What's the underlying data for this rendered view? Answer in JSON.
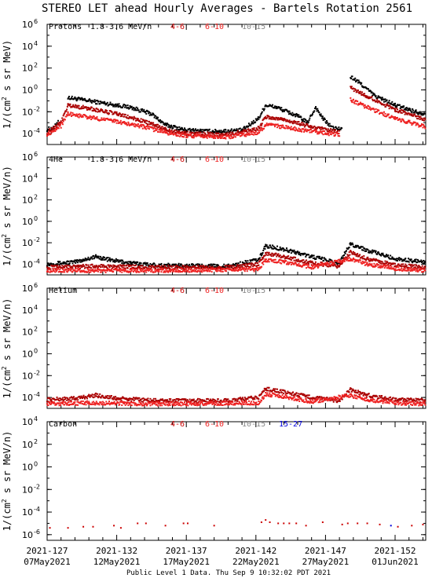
{
  "title": "STEREO LET ahead Hourly Averages - Bartels Rotation 2561",
  "footer": "Public Level 1 Data. Thu Sep  9 10:32:02 PDT 2021",
  "x_ticks": [
    {
      "day": 127,
      "doy": "2021-127",
      "date": "07May2021"
    },
    {
      "day": 132,
      "doy": "2021-132",
      "date": "12May2021"
    },
    {
      "day": 137,
      "doy": "2021-137",
      "date": "17May2021"
    },
    {
      "day": 142,
      "doy": "2021-142",
      "date": "22May2021"
    },
    {
      "day": 147,
      "doy": "2021-147",
      "date": "27May2021"
    },
    {
      "day": 152,
      "doy": "2021-152",
      "date": "01Jun2021"
    }
  ],
  "chart_data": [
    {
      "type": "scatter",
      "panel": "protons",
      "species": "Protons",
      "energy": "1.8-3.6 MeV/n",
      "ylabel": [
        "1/(cm",
        "2",
        " s sr MeV)"
      ],
      "y_exponents": [
        "6",
        "4",
        "2",
        "0",
        "-2",
        "-4"
      ],
      "ylim_log10": [
        -5,
        6
      ],
      "xlim_day": [
        127,
        154.2
      ],
      "legend": [
        {
          "label": "4-6",
          "color": "#cc0000"
        },
        {
          "label": "6-10",
          "color": "#ee2222"
        },
        {
          "label": "10-15",
          "color": "#888888"
        }
      ],
      "series": [
        {
          "name": "1.8-3.6 MeV/n",
          "color": "#000000",
          "points": [
            [
              127,
              -3.6
            ],
            [
              127.5,
              -3.5
            ],
            [
              127.8,
              -2.8
            ],
            [
              128.5,
              -0.7
            ],
            [
              129.5,
              -0.9
            ],
            [
              131,
              -1.2
            ],
            [
              133,
              -1.6
            ],
            [
              134.5,
              -2.2
            ],
            [
              135.5,
              -3.2
            ],
            [
              137,
              -3.7
            ],
            [
              139,
              -3.8
            ],
            [
              141,
              -3.7
            ],
            [
              142.2,
              -2.6
            ],
            [
              142.7,
              -1.4
            ],
            [
              143.5,
              -1.6
            ],
            [
              145,
              -2.4
            ],
            [
              145.7,
              -3.0
            ],
            [
              146.3,
              -1.6
            ],
            [
              146.8,
              -2.6
            ],
            [
              147.5,
              -3.5
            ],
            [
              148.2,
              -3.6
            ],
            [
              148.8,
              1.2
            ],
            [
              149.5,
              0.6
            ],
            [
              150.5,
              -0.5
            ],
            [
              152,
              -1.4
            ],
            [
              153.5,
              -2.0
            ],
            [
              154.2,
              -2.2
            ]
          ]
        },
        {
          "name": "4-6",
          "color": "#aa0000",
          "points": [
            [
              127,
              -3.9
            ],
            [
              128,
              -3.0
            ],
            [
              128.5,
              -1.4
            ],
            [
              130,
              -1.7
            ],
            [
              132,
              -2.2
            ],
            [
              134,
              -2.9
            ],
            [
              135.5,
              -3.6
            ],
            [
              137,
              -4.0
            ],
            [
              140,
              -4.1
            ],
            [
              142.2,
              -3.5
            ],
            [
              142.7,
              -2.5
            ],
            [
              144,
              -2.7
            ],
            [
              146,
              -3.4
            ],
            [
              148,
              -3.9
            ],
            [
              148.8,
              0.2
            ],
            [
              150,
              -0.6
            ],
            [
              152,
              -1.8
            ],
            [
              154.2,
              -2.7
            ]
          ]
        },
        {
          "name": "6-10",
          "color": "#ee2222",
          "points": [
            [
              127,
              -4.1
            ],
            [
              128,
              -3.3
            ],
            [
              128.5,
              -2.2
            ],
            [
              130,
              -2.5
            ],
            [
              132,
              -2.9
            ],
            [
              134,
              -3.4
            ],
            [
              135.5,
              -3.9
            ],
            [
              137,
              -4.2
            ],
            [
              140,
              -4.3
            ],
            [
              142.2,
              -3.9
            ],
            [
              142.7,
              -3.2
            ],
            [
              144,
              -3.4
            ],
            [
              146,
              -3.8
            ],
            [
              148,
              -4.1
            ],
            [
              148.8,
              -0.9
            ],
            [
              150,
              -1.6
            ],
            [
              152,
              -2.6
            ],
            [
              154.2,
              -3.4
            ]
          ]
        }
      ]
    },
    {
      "type": "scatter",
      "panel": "4he",
      "species": "4He",
      "energy": "1.8-3.6 MeV/n",
      "ylabel": [
        "1/(cm",
        "2",
        " s sr MeV/n)"
      ],
      "y_exponents": [
        "6",
        "4",
        "2",
        "0",
        "-2",
        "-4"
      ],
      "ylim_log10": [
        -5,
        6
      ],
      "xlim_day": [
        127,
        154.2
      ],
      "legend": [
        {
          "label": "4-6",
          "color": "#cc0000"
        },
        {
          "label": "6-10",
          "color": "#ee2222"
        },
        {
          "label": "10-15",
          "color": "#888888"
        }
      ],
      "series": [
        {
          "name": "1.8-3.6 MeV/n",
          "color": "#000000",
          "points": [
            [
              127,
              -4.0
            ],
            [
              129,
              -3.8
            ],
            [
              130.5,
              -3.3
            ],
            [
              131.5,
              -3.6
            ],
            [
              133,
              -3.9
            ],
            [
              135,
              -4.1
            ],
            [
              140,
              -4.2
            ],
            [
              142.2,
              -3.6
            ],
            [
              142.7,
              -2.3
            ],
            [
              144,
              -2.6
            ],
            [
              146,
              -3.3
            ],
            [
              148,
              -3.9
            ],
            [
              148.8,
              -2.1
            ],
            [
              150,
              -2.7
            ],
            [
              152,
              -3.5
            ],
            [
              154.2,
              -3.8
            ]
          ]
        },
        {
          "name": "4-6",
          "color": "#aa0000",
          "points": [
            [
              127,
              -4.3
            ],
            [
              130,
              -4.2
            ],
            [
              135,
              -4.3
            ],
            [
              140,
              -4.3
            ],
            [
              142.2,
              -4.0
            ],
            [
              142.7,
              -3.0
            ],
            [
              144,
              -3.3
            ],
            [
              146,
              -3.9
            ],
            [
              148,
              -4.2
            ],
            [
              148.8,
              -2.9
            ],
            [
              150,
              -3.5
            ],
            [
              152,
              -4.1
            ],
            [
              154.2,
              -4.3
            ]
          ]
        },
        {
          "name": "6-10",
          "color": "#ee2222",
          "points": [
            [
              127,
              -4.6
            ],
            [
              135,
              -4.6
            ],
            [
              142.2,
              -4.5
            ],
            [
              142.7,
              -3.6
            ],
            [
              144,
              -3.8
            ],
            [
              146,
              -4.3
            ],
            [
              148.8,
              -3.5
            ],
            [
              150,
              -4.0
            ],
            [
              152,
              -4.4
            ],
            [
              154.2,
              -4.6
            ]
          ]
        }
      ]
    },
    {
      "type": "scatter",
      "panel": "helium",
      "species": "Helium",
      "energy": "",
      "ylabel": [
        "1/(cm",
        "2",
        " s sr MeV/n)"
      ],
      "y_exponents": [
        "6",
        "4",
        "2",
        "0",
        "-2",
        "-4"
      ],
      "ylim_log10": [
        -5,
        6
      ],
      "xlim_day": [
        127,
        154.2
      ],
      "legend": [
        {
          "label": "4-6",
          "color": "#cc0000"
        },
        {
          "label": "6-10",
          "color": "#ee2222"
        },
        {
          "label": "10-15",
          "color": "#888888"
        }
      ],
      "series": [
        {
          "name": "4-6",
          "color": "#aa0000",
          "points": [
            [
              127,
              -4.2
            ],
            [
              129,
              -4.1
            ],
            [
              130.5,
              -3.8
            ],
            [
              132,
              -4.1
            ],
            [
              135,
              -4.3
            ],
            [
              140,
              -4.3
            ],
            [
              142.2,
              -4.0
            ],
            [
              142.7,
              -3.2
            ],
            [
              144,
              -3.5
            ],
            [
              146,
              -4.0
            ],
            [
              148,
              -4.3
            ],
            [
              148.8,
              -3.3
            ],
            [
              150,
              -3.8
            ],
            [
              152,
              -4.2
            ],
            [
              154.2,
              -4.3
            ]
          ]
        },
        {
          "name": "6-10",
          "color": "#ee2222",
          "points": [
            [
              127,
              -4.6
            ],
            [
              130,
              -4.5
            ],
            [
              135,
              -4.6
            ],
            [
              142.2,
              -4.5
            ],
            [
              142.7,
              -3.7
            ],
            [
              144,
              -3.9
            ],
            [
              146,
              -4.4
            ],
            [
              148.8,
              -3.8
            ],
            [
              150,
              -4.2
            ],
            [
              152,
              -4.5
            ],
            [
              154.2,
              -4.6
            ]
          ]
        }
      ]
    },
    {
      "type": "scatter",
      "panel": "carbon",
      "species": "Carbon",
      "energy": "",
      "ylabel": [
        "1/(cm",
        "2",
        " s sr MeV/n)"
      ],
      "y_exponents": [
        "4",
        "2",
        "0",
        "-2",
        "-4",
        "-6"
      ],
      "ylim_log10": [
        -6.5,
        4
      ],
      "xlim_day": [
        127,
        154.2
      ],
      "legend": [
        {
          "label": "4-6",
          "color": "#cc0000"
        },
        {
          "label": "6-10",
          "color": "#ee2222"
        },
        {
          "label": "10-15",
          "color": "#888888"
        },
        {
          "label": "15-27",
          "color": "#0000dd"
        }
      ],
      "series": [
        {
          "name": "4-6",
          "color": "#cc0000",
          "points": [
            [
              127.2,
              -5.4
            ],
            [
              128.5,
              -5.4
            ],
            [
              129.6,
              -5.3
            ],
            [
              130.3,
              -5.3
            ],
            [
              131.8,
              -5.2
            ],
            [
              132.3,
              -5.4
            ],
            [
              133.5,
              -5.0
            ],
            [
              134.1,
              -5.0
            ],
            [
              135.5,
              -5.2
            ],
            [
              136.8,
              -5.0
            ],
            [
              137.1,
              -5.0
            ],
            [
              139,
              -5.2
            ],
            [
              142.4,
              -4.9
            ],
            [
              142.7,
              -4.7
            ],
            [
              143,
              -4.9
            ],
            [
              143.6,
              -5.0
            ],
            [
              144,
              -5.0
            ],
            [
              144.4,
              -5.0
            ],
            [
              144.9,
              -5.0
            ],
            [
              145.6,
              -5.2
            ],
            [
              146.8,
              -4.9
            ],
            [
              148.2,
              -5.1
            ],
            [
              148.6,
              -5.0
            ],
            [
              149.3,
              -5.0
            ],
            [
              150,
              -5.0
            ],
            [
              150.9,
              -5.1
            ],
            [
              152.2,
              -5.3
            ],
            [
              153.2,
              -5.2
            ],
            [
              154,
              -5.1
            ]
          ]
        },
        {
          "name": "15-27",
          "color": "#0000dd",
          "points": [
            [
              151.7,
              -5.2
            ]
          ]
        }
      ]
    }
  ]
}
